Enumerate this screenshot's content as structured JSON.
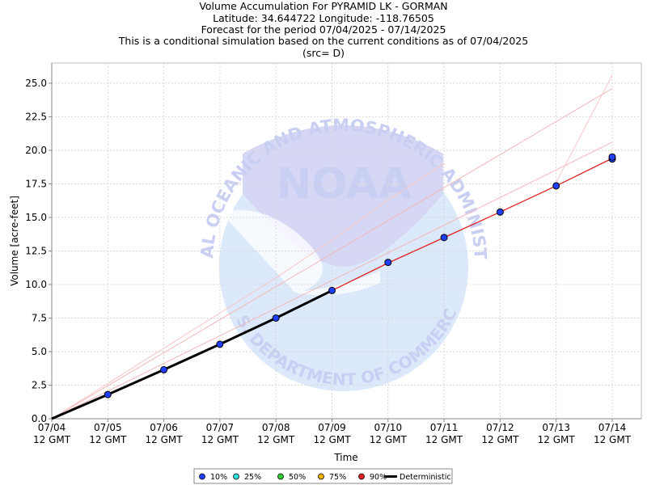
{
  "chart_data": {
    "type": "line",
    "title_lines": [
      "Volume Accumulation For PYRAMID LK - GORMAN",
      "Latitude: 34.644722 Longitude: -118.76505",
      "Forecast for the period 07/04/2025 - 07/14/2025",
      "This is a conditional simulation based on the current conditions as of 07/04/2025",
      "(src= D)"
    ],
    "xlabel": "Time",
    "ylabel": "Volume [acre-feet]",
    "ylim": [
      0,
      26.5
    ],
    "y_ticks": [
      "0.0",
      "2.5",
      "5.0",
      "7.5",
      "10.0",
      "12.5",
      "15.0",
      "17.5",
      "20.0",
      "22.5",
      "25.0"
    ],
    "x_ticks": [
      {
        "date": "07/04",
        "time": "12 GMT"
      },
      {
        "date": "07/05",
        "time": "12 GMT"
      },
      {
        "date": "07/06",
        "time": "12 GMT"
      },
      {
        "date": "07/07",
        "time": "12 GMT"
      },
      {
        "date": "07/08",
        "time": "12 GMT"
      },
      {
        "date": "07/09",
        "time": "12 GMT"
      },
      {
        "date": "07/10",
        "time": "12 GMT"
      },
      {
        "date": "07/11",
        "time": "12 GMT"
      },
      {
        "date": "07/12",
        "time": "12 GMT"
      },
      {
        "date": "07/13",
        "time": "12 GMT"
      },
      {
        "date": "07/14",
        "time": "12 GMT"
      }
    ],
    "grid": true,
    "legend_position": "bottom-center",
    "legend": [
      {
        "label": "10%",
        "color": "#1f3fff",
        "marker": "dot"
      },
      {
        "label": "25%",
        "color": "#33e0e0",
        "marker": "dot"
      },
      {
        "label": "50%",
        "color": "#33cc33",
        "marker": "dot"
      },
      {
        "label": "75%",
        "color": "#f0b400",
        "marker": "dot"
      },
      {
        "label": "90%",
        "color": "#e02020",
        "marker": "dot"
      },
      {
        "label": "Deterministic",
        "color": "#000000",
        "marker": "line"
      }
    ],
    "series": [
      {
        "legend": "10%",
        "color": "#1f3fff",
        "x": [
          "07/05 12 GMT",
          "07/06 12 GMT",
          "07/07 12 GMT",
          "07/08 12 GMT",
          "07/09 12 GMT",
          "07/10 12 GMT",
          "07/11 12 GMT",
          "07/12 12 GMT",
          "07/13 12 GMT",
          "07/14 12 GMT",
          "07/14 12 GMT"
        ],
        "values": [
          1.8,
          3.65,
          5.55,
          7.5,
          9.55,
          11.65,
          13.5,
          15.4,
          17.35,
          19.35,
          19.5
        ]
      },
      {
        "legend": "90%",
        "color": "#e02020",
        "x": [
          "07/09 12 GMT",
          "07/10 12 GMT",
          "07/11 12 GMT",
          "07/12 12 GMT",
          "07/13 12 GMT",
          "07/14 12 GMT"
        ],
        "values": [
          9.55,
          11.6,
          13.5,
          15.4,
          17.35,
          19.4
        ]
      },
      {
        "legend": "Deterministic",
        "color": "#000000",
        "x": [
          "07/04 12 GMT",
          "07/05 12 GMT",
          "07/06 12 GMT",
          "07/07 12 GMT",
          "07/08 12 GMT",
          "07/09 12 GMT"
        ],
        "values": [
          0.0,
          1.8,
          3.65,
          5.55,
          7.5,
          9.55
        ]
      }
    ],
    "faint_traces": [
      {
        "color": "#f4b8b8",
        "x": [
          "07/04 12 GMT",
          "07/14 12 GMT"
        ],
        "values": [
          0.0,
          24.6
        ]
      },
      {
        "color": "#f4b8b8",
        "x": [
          "07/04 12 GMT",
          "07/14 12 GMT"
        ],
        "values": [
          0.0,
          20.6
        ]
      },
      {
        "color": "#f8c8c8",
        "x": [
          "07/04 12 GMT",
          "07/08 12 GMT",
          "07/09 12 GMT",
          "07/10 12 GMT",
          "07/11 12 GMT"
        ],
        "values": [
          0.0,
          10.5,
          13.3,
          16.3,
          19.0
        ]
      },
      {
        "color": "#f8c8c8",
        "x": [
          "07/13 12 GMT",
          "07/14 12 GMT"
        ],
        "values": [
          17.6,
          25.6
        ]
      }
    ]
  },
  "watermark": {
    "logo_text": "NOAA",
    "ring_text_top": "NATIONAL OCEANIC AND ATMOSPHERIC ADMINISTRATION",
    "ring_text_bottom": "U.S. DEPARTMENT OF COMMERCE"
  }
}
